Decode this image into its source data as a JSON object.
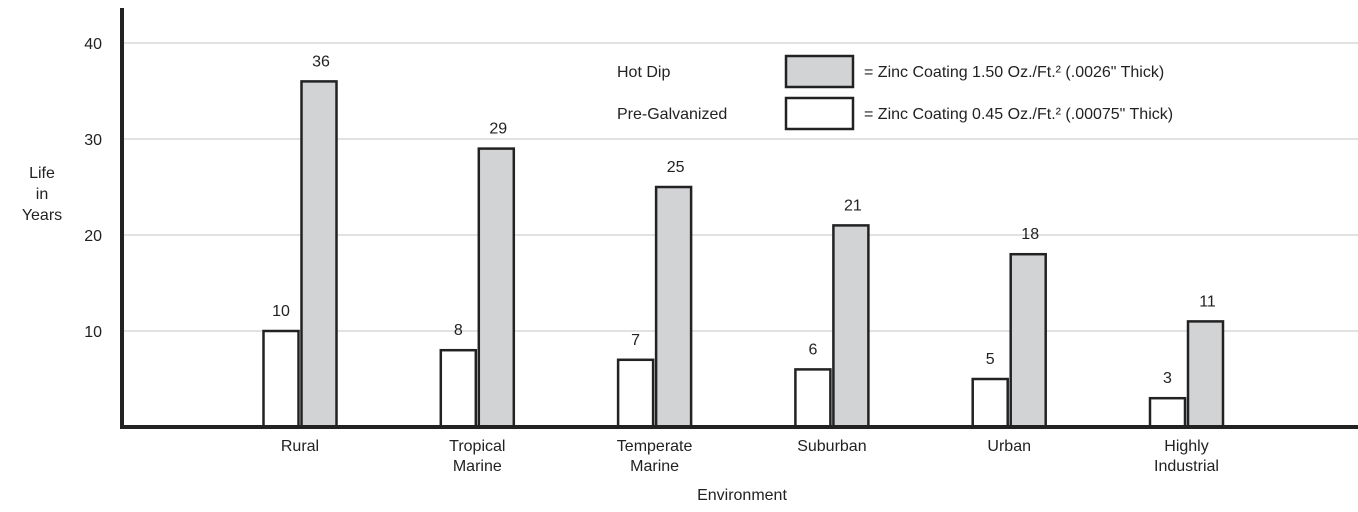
{
  "chart_data": {
    "type": "bar",
    "title": "",
    "xlabel": "Environment",
    "ylabel": [
      "Life",
      "in",
      "Years"
    ],
    "ylim": [
      0,
      40
    ],
    "yticks": [
      10,
      20,
      30,
      40
    ],
    "grid": true,
    "categories": [
      [
        "Rural"
      ],
      [
        "Tropical",
        "Marine"
      ],
      [
        "Temperate",
        "Marine"
      ],
      [
        "Suburban"
      ],
      [
        "Urban"
      ],
      [
        "Highly",
        "Industrial"
      ]
    ],
    "series": [
      {
        "name": "Pre-Galvanized",
        "description": "= Zinc Coating 0.45 Oz./Ft.² (.00075\" Thick)",
        "color": "#ffffff",
        "values": [
          10,
          8,
          7,
          6,
          5,
          3
        ]
      },
      {
        "name": "Hot Dip",
        "description": "= Zinc Coating 1.50 Oz./Ft.² (.0026\" Thick)",
        "color": "#d2d3d5",
        "values": [
          36,
          29,
          25,
          21,
          18,
          11
        ]
      }
    ],
    "legend_position": "top-right"
  }
}
